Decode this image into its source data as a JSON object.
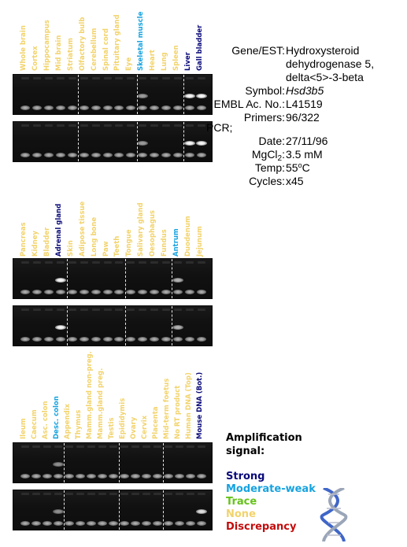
{
  "colors": {
    "strong": "#0a0a7a",
    "moderate_weak": "#16a3e0",
    "trace": "#66c21a",
    "none": "#f2d36b",
    "discrepancy": "#c40b0b"
  },
  "panels": [
    {
      "lanes": [
        {
          "label": "Whole brain",
          "signal": "none"
        },
        {
          "label": "Cortex",
          "signal": "none"
        },
        {
          "label": "Hippocampus",
          "signal": "none"
        },
        {
          "label": "Mid brain",
          "signal": "none"
        },
        {
          "label": "Striatum",
          "signal": "none"
        },
        {
          "label": "Olfactory bulb",
          "signal": "none"
        },
        {
          "label": "Cerebellum",
          "signal": "none"
        },
        {
          "label": "Spinal cord",
          "signal": "none"
        },
        {
          "label": "Pituitary gland",
          "signal": "none"
        },
        {
          "label": "Eye",
          "signal": "none"
        },
        {
          "label": "Skeletal muscle",
          "signal": "moderate_weak"
        },
        {
          "label": "Heart",
          "signal": "none"
        },
        {
          "label": "Lung",
          "signal": "none"
        },
        {
          "label": "Spleen",
          "signal": "none"
        },
        {
          "label": "Liver",
          "signal": "strong"
        },
        {
          "label": "Gall bladder",
          "signal": "strong"
        }
      ],
      "bands": [
        [
          0,
          0,
          0,
          0,
          0,
          0,
          0,
          0,
          0,
          0,
          0.6,
          0,
          0,
          0,
          1,
          1
        ],
        [
          0,
          0,
          0,
          0,
          0,
          0,
          0,
          0,
          0,
          0,
          0.6,
          0,
          0,
          0,
          1,
          1
        ]
      ],
      "separators_after": [
        4,
        9,
        13
      ]
    },
    {
      "lanes": [
        {
          "label": "Pancreas",
          "signal": "none"
        },
        {
          "label": "Kidney",
          "signal": "none"
        },
        {
          "label": "Bladder",
          "signal": "none"
        },
        {
          "label": "Adrenal gland",
          "signal": "strong"
        },
        {
          "label": "Skin",
          "signal": "none"
        },
        {
          "label": "Adipose tissue",
          "signal": "none"
        },
        {
          "label": "Long bone",
          "signal": "none"
        },
        {
          "label": "Paw",
          "signal": "none"
        },
        {
          "label": "Teeth",
          "signal": "none"
        },
        {
          "label": "Tongue",
          "signal": "none"
        },
        {
          "label": "Salivary gland",
          "signal": "none"
        },
        {
          "label": "Oesophagus",
          "signal": "none"
        },
        {
          "label": "Fundus",
          "signal": "none"
        },
        {
          "label": "Antrum",
          "signal": "moderate_weak"
        },
        {
          "label": "Duodenum",
          "signal": "none"
        },
        {
          "label": "Jejunum",
          "signal": "none"
        }
      ],
      "bands": [
        [
          0,
          0,
          0,
          1,
          0,
          0,
          0,
          0,
          0,
          0,
          0,
          0,
          0,
          0.7,
          0,
          0
        ],
        [
          0,
          0,
          0,
          1,
          0,
          0,
          0,
          0,
          0,
          0,
          0,
          0,
          0,
          0.7,
          0,
          0
        ]
      ],
      "separators_after": [
        3,
        8,
        12
      ]
    },
    {
      "lanes": [
        {
          "label": "Ileum",
          "signal": "none"
        },
        {
          "label": "Caecum",
          "signal": "none"
        },
        {
          "label": "Asc. colon",
          "signal": "none"
        },
        {
          "label": "Desc. colon",
          "signal": "moderate_weak"
        },
        {
          "label": "Appendix",
          "signal": "none"
        },
        {
          "label": "Thymus",
          "signal": "none"
        },
        {
          "label": "Mamm.gland non-preg.",
          "signal": "none"
        },
        {
          "label": "Mamm.gland preg.",
          "signal": "none"
        },
        {
          "label": "Testis",
          "signal": "none"
        },
        {
          "label": "Epididymis",
          "signal": "none"
        },
        {
          "label": "Ovary",
          "signal": "none"
        },
        {
          "label": "Cervix",
          "signal": "none"
        },
        {
          "label": "Placenta",
          "signal": "none"
        },
        {
          "label": "Mid-term foetus",
          "signal": "none"
        },
        {
          "label": "No RT product",
          "signal": "none"
        },
        {
          "label": "Human DNA (Top)",
          "signal": "none"
        },
        {
          "label": "Mouse DNA (Bot.)",
          "signal": "strong"
        }
      ],
      "bands": [
        [
          0,
          0,
          0,
          0.55,
          0,
          0,
          0,
          0,
          0,
          0,
          0,
          0,
          0,
          0,
          0,
          0,
          0
        ],
        [
          0,
          0,
          0,
          0.55,
          0,
          0,
          0,
          0,
          0,
          0,
          0,
          0,
          0,
          0,
          0,
          0,
          0.9
        ]
      ],
      "separators_after": [
        3,
        8,
        12
      ]
    }
  ],
  "info": {
    "gene_key": "Gene/EST:",
    "gene_val_lines": [
      "Hydroxysteroid",
      "dehydrogenase 5,",
      "delta<5>-3-beta"
    ],
    "symbol_key": "Symbol:",
    "symbol_val": "Hsd3b5",
    "embl_key": "EMBL Ac. No.:",
    "embl_val": "L41519",
    "primers_key": "Primers:",
    "primers_val": "96/322",
    "pcr_label": "PCR;",
    "date_key": "Date:",
    "date_val": "27/11/96",
    "mgcl_key_main": "MgCl",
    "mgcl_key_sub": "2",
    "mgcl_key_colon": ":",
    "mgcl_val": "3.5 mM",
    "temp_key": "Temp:",
    "temp_val_num": "55",
    "temp_val_sup": "o",
    "temp_val_unit": "C",
    "cycles_key": "Cycles:",
    "cycles_val": "x45"
  },
  "legend": {
    "title_line1": "Amplification",
    "title_line2": "signal:",
    "items": [
      {
        "label": "Strong",
        "color_key": "strong"
      },
      {
        "label": "Moderate-weak",
        "color_key": "moderate_weak"
      },
      {
        "label": "Trace",
        "color_key": "trace"
      },
      {
        "label": "None",
        "color_key": "none"
      },
      {
        "label": "Discrepancy",
        "color_key": "discrepancy"
      }
    ],
    "dna_icon": "dna-helix-icon"
  }
}
